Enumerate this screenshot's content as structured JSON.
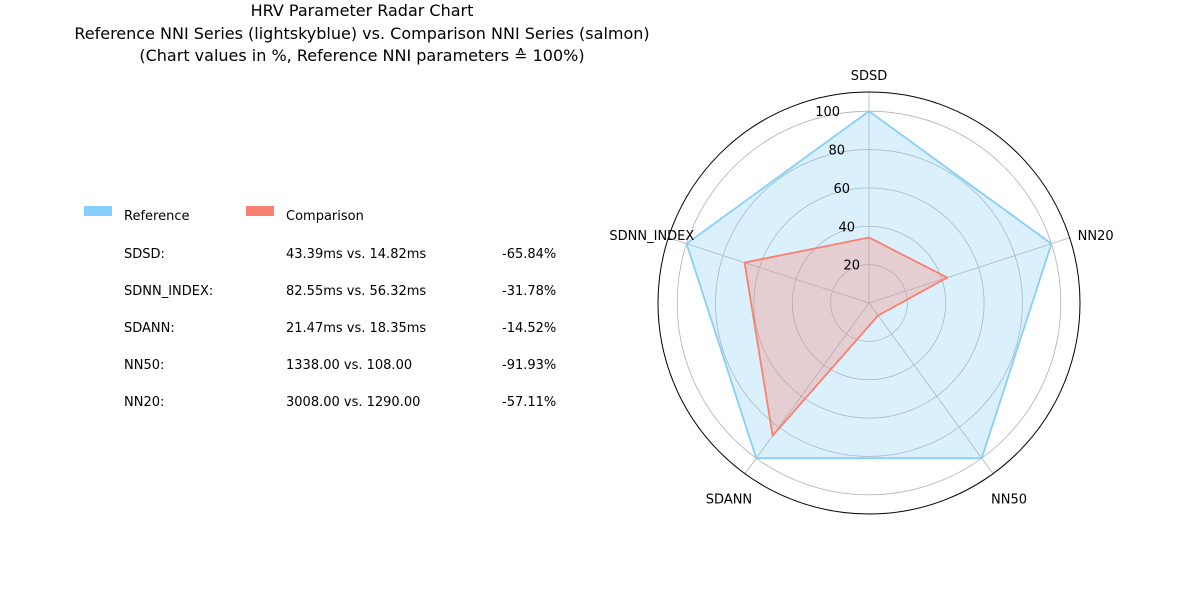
{
  "title": {
    "line1": "HRV Parameter Radar Chart",
    "line2": "Reference NNI Series (lightskyblue) vs. Comparison NNI Series (salmon)",
    "line3": "(Chart values in %, Reference NNI parameters ≙ 100%)"
  },
  "legend": {
    "items": [
      {
        "label": "Reference",
        "color": "#87CEFA"
      },
      {
        "label": "Comparison",
        "color": "#FA8072"
      }
    ]
  },
  "table": {
    "rows": [
      {
        "param": "SDSD:",
        "values": "43.39ms vs. 14.82ms",
        "change": "-65.84%"
      },
      {
        "param": "SDNN_INDEX:",
        "values": "82.55ms vs. 56.32ms",
        "change": "-31.78%"
      },
      {
        "param": "SDANN:",
        "values": "21.47ms vs. 18.35ms",
        "change": "-14.52%"
      },
      {
        "param": "NN50:",
        "values": "1338.00 vs. 108.00",
        "change": "-91.93%"
      },
      {
        "param": "NN20:",
        "values": "3008.00 vs. 1290.00",
        "change": "-57.11%"
      }
    ]
  },
  "chart_data": {
    "type": "radar",
    "categories": [
      "SDSD",
      "NN20",
      "NN50",
      "SDANN",
      "SDNN_INDEX"
    ],
    "series": [
      {
        "name": "Reference",
        "color": "#87CEFA",
        "values": [
          100,
          100,
          100,
          100,
          100
        ]
      },
      {
        "name": "Comparison",
        "color": "#FA8072",
        "values": [
          34.16,
          42.89,
          8.07,
          85.48,
          68.22
        ]
      }
    ],
    "rticks": [
      20,
      40,
      60,
      80,
      100
    ],
    "rlim": [
      0,
      110
    ],
    "grid": true
  }
}
